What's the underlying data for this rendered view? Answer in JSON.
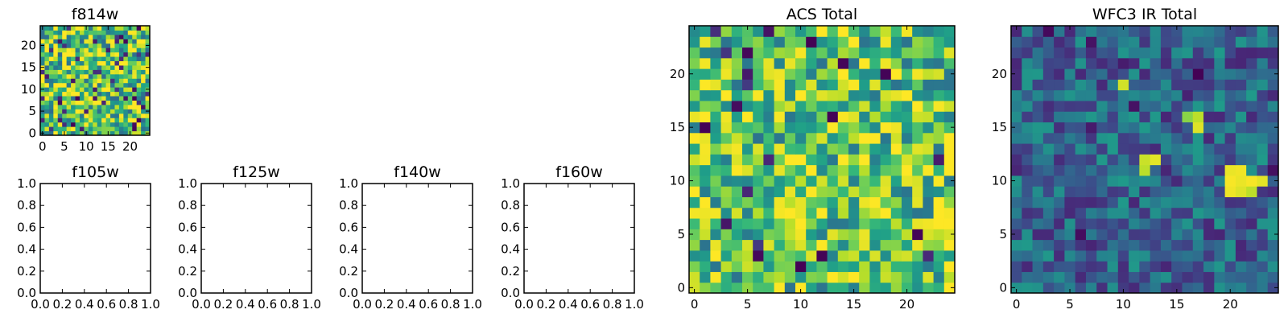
{
  "figure": {
    "cmap": "viridis"
  },
  "chart_data": [
    {
      "id": "f814w",
      "type": "heatmap",
      "title": "f814w",
      "grid_size": 25,
      "xlim": [
        -0.5,
        24.5
      ],
      "ylim": [
        -0.5,
        24.5
      ],
      "xticks": [
        0,
        5,
        10,
        15,
        20
      ],
      "yticks": [
        0,
        5,
        10,
        15,
        20
      ],
      "value_range": [
        0,
        1
      ],
      "seed": 814,
      "base": 0.72,
      "spread": 0.38,
      "dark_fraction": 0.06
    },
    {
      "id": "f105w",
      "type": "empty",
      "title": "f105w",
      "xlim": [
        0.0,
        1.0
      ],
      "ylim": [
        0.0,
        1.0
      ],
      "xticks": [
        "0.0",
        "0.2",
        "0.4",
        "0.6",
        "0.8",
        "1.0"
      ],
      "yticks": [
        "0.0",
        "0.2",
        "0.4",
        "0.6",
        "0.8",
        "1.0"
      ]
    },
    {
      "id": "f125w",
      "type": "empty",
      "title": "f125w",
      "xlim": [
        0.0,
        1.0
      ],
      "ylim": [
        0.0,
        1.0
      ],
      "xticks": [
        "0.0",
        "0.2",
        "0.4",
        "0.6",
        "0.8",
        "1.0"
      ],
      "yticks": [
        "0.0",
        "0.2",
        "0.4",
        "0.6",
        "0.8",
        "1.0"
      ]
    },
    {
      "id": "f140w",
      "type": "empty",
      "title": "f140w",
      "xlim": [
        0.0,
        1.0
      ],
      "ylim": [
        0.0,
        1.0
      ],
      "xticks": [
        "0.0",
        "0.2",
        "0.4",
        "0.6",
        "0.8",
        "1.0"
      ],
      "yticks": [
        "0.0",
        "0.2",
        "0.4",
        "0.6",
        "0.8",
        "1.0"
      ]
    },
    {
      "id": "f160w",
      "type": "empty",
      "title": "f160w",
      "xlim": [
        0.0,
        1.0
      ],
      "ylim": [
        0.0,
        1.0
      ],
      "xticks": [
        "0.0",
        "0.2",
        "0.4",
        "0.6",
        "0.8",
        "1.0"
      ],
      "yticks": [
        "0.0",
        "0.2",
        "0.4",
        "0.6",
        "0.8",
        "1.0"
      ]
    },
    {
      "id": "acs-total",
      "type": "heatmap",
      "title": "ACS Total",
      "grid_size": 25,
      "xlim": [
        -0.5,
        24.5
      ],
      "ylim": [
        -0.5,
        24.5
      ],
      "xticks": [
        0,
        5,
        10,
        15,
        20
      ],
      "yticks": [
        0,
        5,
        10,
        15,
        20
      ],
      "value_range": [
        0,
        1
      ],
      "seed": 2024,
      "base": 0.72,
      "spread": 0.34,
      "dark_fraction": 0.035,
      "bright_fraction": 0.08
    },
    {
      "id": "wfc3-ir-total",
      "type": "heatmap",
      "title": "WFC3 IR Total",
      "grid_size": 25,
      "xlim": [
        -0.5,
        24.5
      ],
      "ylim": [
        -0.5,
        24.5
      ],
      "xticks": [
        0,
        5,
        10,
        15,
        20
      ],
      "yticks": [
        0,
        5,
        10,
        15,
        20
      ],
      "value_range": [
        0,
        1
      ],
      "seed": 160,
      "base": 0.32,
      "spread": 0.22,
      "dark_fraction": 0.03,
      "hotspots": [
        {
          "x": 17,
          "y": 16,
          "value": 0.9
        },
        {
          "x": 16,
          "y": 16,
          "value": 0.82
        },
        {
          "x": 17,
          "y": 15,
          "value": 0.95
        },
        {
          "x": 12,
          "y": 12,
          "value": 0.92
        },
        {
          "x": 13,
          "y": 12,
          "value": 0.96
        },
        {
          "x": 12,
          "y": 11,
          "value": 0.9
        },
        {
          "x": 20,
          "y": 11,
          "value": 0.97
        },
        {
          "x": 21,
          "y": 11,
          "value": 0.98
        },
        {
          "x": 20,
          "y": 10,
          "value": 0.99
        },
        {
          "x": 21,
          "y": 10,
          "value": 0.97
        },
        {
          "x": 22,
          "y": 10,
          "value": 0.99
        },
        {
          "x": 23,
          "y": 10,
          "value": 0.96
        },
        {
          "x": 20,
          "y": 9,
          "value": 0.98
        },
        {
          "x": 21,
          "y": 9,
          "value": 0.95
        },
        {
          "x": 22,
          "y": 9,
          "value": 0.9
        },
        {
          "x": 10,
          "y": 19,
          "value": 0.93
        }
      ]
    }
  ]
}
